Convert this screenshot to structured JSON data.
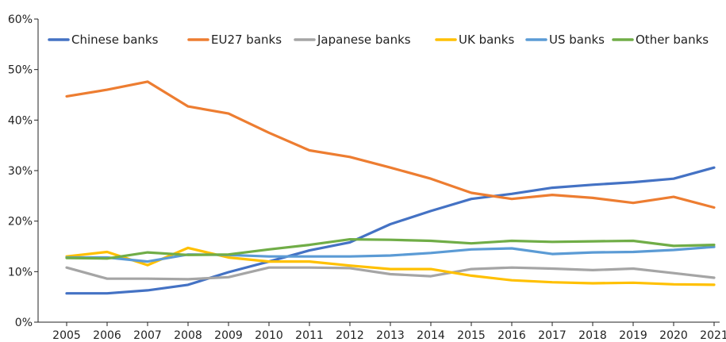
{
  "chart_data": {
    "type": "line",
    "title": "",
    "xlabel": "",
    "ylabel": "",
    "x": [
      "2005",
      "2006",
      "2007",
      "2008",
      "2009",
      "2010",
      "2011",
      "2012",
      "2013",
      "2014",
      "2015",
      "2016",
      "2017",
      "2018",
      "2019",
      "2020",
      "2021"
    ],
    "ylim": [
      0,
      60
    ],
    "y_ticks": [
      0,
      10,
      20,
      30,
      40,
      50,
      60
    ],
    "y_tick_labels": [
      "0%",
      "10%",
      "20%",
      "30%",
      "40%",
      "50%",
      "60%"
    ],
    "grid": false,
    "legend_position": "top",
    "series": [
      {
        "name": "Chinese banks",
        "color": "#4472C4",
        "values": [
          5.7,
          5.7,
          6.3,
          7.4,
          9.9,
          12.0,
          14.2,
          15.8,
          19.4,
          22.0,
          24.4,
          25.4,
          26.6,
          27.2,
          27.7,
          28.4,
          30.6
        ]
      },
      {
        "name": "EU27 banks",
        "color": "#ED7D31",
        "values": [
          44.7,
          46.0,
          47.6,
          42.7,
          41.3,
          37.5,
          34.0,
          32.7,
          30.6,
          28.4,
          25.6,
          24.4,
          25.2,
          24.6,
          23.6,
          24.8,
          22.7
        ]
      },
      {
        "name": "Japanese banks",
        "color": "#A5A5A5",
        "values": [
          10.8,
          8.6,
          8.6,
          8.5,
          8.9,
          10.8,
          10.8,
          10.7,
          9.5,
          9.1,
          10.5,
          10.8,
          10.6,
          10.3,
          10.6,
          9.7,
          8.8
        ]
      },
      {
        "name": "UK banks",
        "color": "#FFC000",
        "values": [
          13.0,
          13.9,
          11.3,
          14.7,
          12.8,
          12.0,
          12.0,
          11.2,
          10.5,
          10.5,
          9.2,
          8.3,
          7.9,
          7.7,
          7.8,
          7.5,
          7.4
        ]
      },
      {
        "name": "US banks",
        "color": "#5B9BD5",
        "values": [
          12.8,
          12.8,
          12.0,
          13.4,
          13.3,
          13.0,
          13.0,
          13.0,
          13.2,
          13.7,
          14.4,
          14.6,
          13.5,
          13.8,
          13.9,
          14.3,
          14.9
        ]
      },
      {
        "name": "Other banks",
        "color": "#70AD47",
        "values": [
          12.7,
          12.6,
          13.8,
          13.3,
          13.4,
          14.4,
          15.3,
          16.4,
          16.3,
          16.1,
          15.6,
          16.1,
          15.9,
          16.0,
          16.1,
          15.1,
          15.3
        ]
      }
    ]
  }
}
